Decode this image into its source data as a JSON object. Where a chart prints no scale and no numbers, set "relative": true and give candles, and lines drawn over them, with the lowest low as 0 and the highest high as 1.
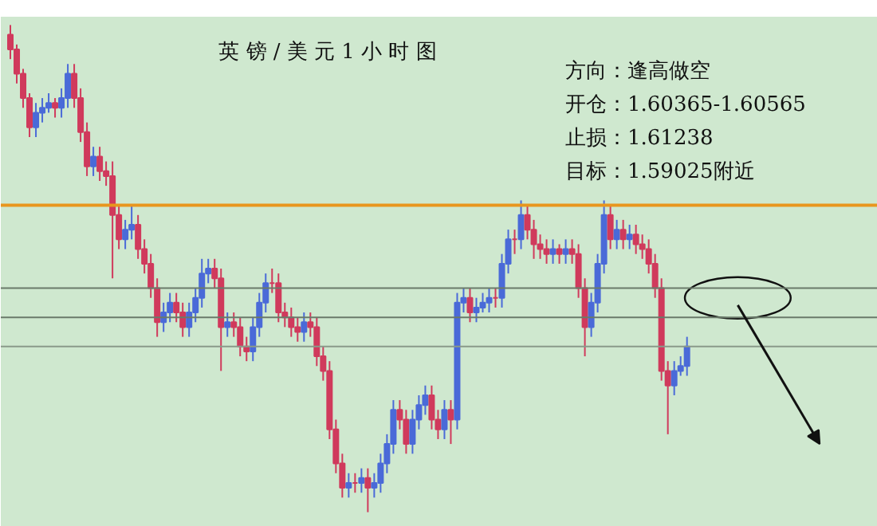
{
  "chart_data": {
    "type": "candlestick",
    "relative": true,
    "title": "英 镑 / 美 元 1 小 时 图",
    "annotations": [
      "方向：逢高做空",
      "开仓：1.60365-1.60565",
      "止损：1.61238",
      "目标：1.59025附近"
    ],
    "categories": [
      null,
      null,
      null,
      null,
      null,
      null,
      null,
      null,
      null,
      null,
      null,
      null,
      null,
      null,
      null,
      null,
      null,
      null,
      null,
      null,
      null,
      null,
      null,
      null,
      null,
      null,
      null,
      null,
      null,
      null,
      null,
      null,
      null,
      null,
      null,
      null,
      null,
      null,
      null,
      null,
      null,
      null,
      null,
      null,
      null,
      null,
      null,
      null,
      null,
      null,
      null,
      null,
      null,
      null,
      null,
      null,
      null,
      null,
      null,
      null,
      null,
      null,
      null,
      null,
      null,
      null,
      null,
      null,
      null,
      null,
      null,
      null,
      null,
      null,
      null,
      null,
      null,
      null,
      null,
      null,
      null,
      null,
      null,
      null,
      null,
      null,
      null,
      null,
      null,
      null,
      null,
      null,
      null,
      null,
      null,
      null,
      null,
      null,
      null,
      null,
      null,
      null,
      null,
      null,
      null,
      null,
      null
    ],
    "ohlc": [
      [
        0.98,
        1.0,
        0.93,
        0.95
      ],
      [
        0.95,
        0.96,
        0.88,
        0.9
      ],
      [
        0.9,
        0.91,
        0.83,
        0.85
      ],
      [
        0.85,
        0.86,
        0.77,
        0.79
      ],
      [
        0.79,
        0.84,
        0.77,
        0.82
      ],
      [
        0.82,
        0.85,
        0.8,
        0.83
      ],
      [
        0.83,
        0.86,
        0.82,
        0.84
      ],
      [
        0.84,
        0.85,
        0.81,
        0.83
      ],
      [
        0.83,
        0.87,
        0.81,
        0.85
      ],
      [
        0.85,
        0.92,
        0.83,
        0.9
      ],
      [
        0.9,
        0.92,
        0.83,
        0.85
      ],
      [
        0.85,
        0.87,
        0.76,
        0.78
      ],
      [
        0.78,
        0.8,
        0.69,
        0.71
      ],
      [
        0.71,
        0.75,
        0.69,
        0.73
      ],
      [
        0.73,
        0.75,
        0.68,
        0.7
      ],
      [
        0.7,
        0.72,
        0.67,
        0.69
      ],
      [
        0.69,
        0.72,
        0.48,
        0.61
      ],
      [
        0.61,
        0.63,
        0.54,
        0.56
      ],
      [
        0.56,
        0.6,
        0.54,
        0.58
      ],
      [
        0.58,
        0.63,
        0.56,
        0.59
      ],
      [
        0.59,
        0.61,
        0.52,
        0.54
      ],
      [
        0.54,
        0.56,
        0.49,
        0.51
      ],
      [
        0.51,
        0.53,
        0.44,
        0.46
      ],
      [
        0.46,
        0.48,
        0.36,
        0.39
      ],
      [
        0.39,
        0.43,
        0.37,
        0.41
      ],
      [
        0.41,
        0.45,
        0.39,
        0.43
      ],
      [
        0.43,
        0.45,
        0.39,
        0.41
      ],
      [
        0.41,
        0.43,
        0.36,
        0.38
      ],
      [
        0.38,
        0.43,
        0.36,
        0.41
      ],
      [
        0.41,
        0.46,
        0.39,
        0.44
      ],
      [
        0.44,
        0.52,
        0.42,
        0.49
      ],
      [
        0.49,
        0.52,
        0.47,
        0.5
      ],
      [
        0.5,
        0.52,
        0.46,
        0.48
      ],
      [
        0.48,
        0.5,
        0.29,
        0.38
      ],
      [
        0.38,
        0.41,
        0.36,
        0.39
      ],
      [
        0.39,
        0.41,
        0.36,
        0.38
      ],
      [
        0.38,
        0.4,
        0.32,
        0.34
      ],
      [
        0.34,
        0.36,
        0.31,
        0.33
      ],
      [
        0.33,
        0.4,
        0.31,
        0.38
      ],
      [
        0.38,
        0.45,
        0.36,
        0.43
      ],
      [
        0.43,
        0.49,
        0.41,
        0.47
      ],
      [
        0.47,
        0.5,
        0.45,
        0.47
      ],
      [
        0.47,
        0.49,
        0.39,
        0.41
      ],
      [
        0.41,
        0.43,
        0.38,
        0.4
      ],
      [
        0.4,
        0.42,
        0.36,
        0.38
      ],
      [
        0.38,
        0.4,
        0.35,
        0.37
      ],
      [
        0.37,
        0.41,
        0.35,
        0.39
      ],
      [
        0.39,
        0.41,
        0.36,
        0.38
      ],
      [
        0.38,
        0.4,
        0.3,
        0.32
      ],
      [
        0.32,
        0.34,
        0.27,
        0.29
      ],
      [
        0.29,
        0.31,
        0.15,
        0.17
      ],
      [
        0.17,
        0.19,
        0.08,
        0.1
      ],
      [
        0.1,
        0.12,
        0.03,
        0.05
      ],
      [
        0.05,
        0.08,
        0.03,
        0.06
      ],
      [
        0.06,
        0.08,
        0.04,
        0.06
      ],
      [
        0.06,
        0.09,
        0.04,
        0.07
      ],
      [
        0.07,
        0.09,
        0.0,
        0.05
      ],
      [
        0.05,
        0.08,
        0.03,
        0.06
      ],
      [
        0.06,
        0.12,
        0.04,
        0.1
      ],
      [
        0.1,
        0.16,
        0.08,
        0.14
      ],
      [
        0.14,
        0.23,
        0.12,
        0.21
      ],
      [
        0.21,
        0.23,
        0.17,
        0.19
      ],
      [
        0.19,
        0.21,
        0.12,
        0.14
      ],
      [
        0.14,
        0.21,
        0.12,
        0.19
      ],
      [
        0.19,
        0.24,
        0.17,
        0.22
      ],
      [
        0.22,
        0.26,
        0.2,
        0.24
      ],
      [
        0.24,
        0.26,
        0.17,
        0.19
      ],
      [
        0.19,
        0.21,
        0.15,
        0.17
      ],
      [
        0.17,
        0.23,
        0.15,
        0.21
      ],
      [
        0.21,
        0.23,
        0.14,
        0.19
      ],
      [
        0.19,
        0.45,
        0.17,
        0.43
      ],
      [
        0.43,
        0.46,
        0.41,
        0.44
      ],
      [
        0.44,
        0.46,
        0.39,
        0.41
      ],
      [
        0.41,
        0.44,
        0.39,
        0.42
      ],
      [
        0.42,
        0.45,
        0.41,
        0.43
      ],
      [
        0.43,
        0.46,
        0.41,
        0.44
      ],
      [
        0.44,
        0.46,
        0.42,
        0.44
      ],
      [
        0.44,
        0.53,
        0.42,
        0.51
      ],
      [
        0.51,
        0.58,
        0.49,
        0.56
      ],
      [
        0.56,
        0.58,
        0.53,
        0.56
      ],
      [
        0.56,
        0.64,
        0.54,
        0.61
      ],
      [
        0.61,
        0.63,
        0.56,
        0.58
      ],
      [
        0.58,
        0.6,
        0.52,
        0.55
      ],
      [
        0.55,
        0.57,
        0.52,
        0.54
      ],
      [
        0.54,
        0.56,
        0.51,
        0.53
      ],
      [
        0.53,
        0.56,
        0.51,
        0.54
      ],
      [
        0.54,
        0.55,
        0.51,
        0.53
      ],
      [
        0.53,
        0.56,
        0.51,
        0.54
      ],
      [
        0.54,
        0.56,
        0.51,
        0.53
      ],
      [
        0.53,
        0.55,
        0.44,
        0.46
      ],
      [
        0.46,
        0.48,
        0.32,
        0.38
      ],
      [
        0.38,
        0.45,
        0.36,
        0.43
      ],
      [
        0.43,
        0.53,
        0.41,
        0.51
      ],
      [
        0.51,
        0.64,
        0.49,
        0.61
      ],
      [
        0.61,
        0.63,
        0.54,
        0.56
      ],
      [
        0.56,
        0.6,
        0.54,
        0.58
      ],
      [
        0.58,
        0.6,
        0.54,
        0.56
      ],
      [
        0.56,
        0.59,
        0.54,
        0.57
      ],
      [
        0.57,
        0.59,
        0.53,
        0.55
      ],
      [
        0.55,
        0.57,
        0.52,
        0.54
      ],
      [
        0.54,
        0.56,
        0.49,
        0.51
      ],
      [
        0.51,
        0.53,
        0.44,
        0.46
      ],
      [
        0.46,
        0.48,
        0.27,
        0.29
      ],
      [
        0.29,
        0.31,
        0.16,
        0.26
      ],
      [
        0.26,
        0.31,
        0.24,
        0.29
      ],
      [
        0.29,
        0.32,
        0.28,
        0.3
      ],
      [
        0.3,
        0.36,
        0.28,
        0.34
      ]
    ],
    "colors": [
      "#d03a5c",
      "#d03a5c",
      "#d03a5c",
      "#d03a5c",
      "#4a6ad8",
      "#4a6ad8",
      "#4a6ad8",
      "#d03a5c",
      "#4a6ad8",
      "#4a6ad8",
      "#d03a5c",
      "#d03a5c",
      "#d03a5c",
      "#4a6ad8",
      "#d03a5c",
      "#d03a5c",
      "#d03a5c",
      "#d03a5c",
      "#4a6ad8",
      "#4a6ad8",
      "#d03a5c",
      "#d03a5c",
      "#d03a5c",
      "#d03a5c",
      "#4a6ad8",
      "#4a6ad8",
      "#d03a5c",
      "#d03a5c",
      "#4a6ad8",
      "#4a6ad8",
      "#4a6ad8",
      "#4a6ad8",
      "#d03a5c",
      "#d03a5c",
      "#4a6ad8",
      "#d03a5c",
      "#d03a5c",
      "#d03a5c",
      "#4a6ad8",
      "#4a6ad8",
      "#4a6ad8",
      "#d03a5c",
      "#d03a5c",
      "#d03a5c",
      "#d03a5c",
      "#d03a5c",
      "#4a6ad8",
      "#d03a5c",
      "#d03a5c",
      "#d03a5c",
      "#d03a5c",
      "#d03a5c",
      "#d03a5c",
      "#4a6ad8",
      "#d03a5c",
      "#4a6ad8",
      "#d03a5c",
      "#4a6ad8",
      "#4a6ad8",
      "#4a6ad8",
      "#4a6ad8",
      "#d03a5c",
      "#d03a5c",
      "#4a6ad8",
      "#4a6ad8",
      "#4a6ad8",
      "#d03a5c",
      "#d03a5c",
      "#4a6ad8",
      "#d03a5c",
      "#4a6ad8",
      "#4a6ad8",
      "#d03a5c",
      "#4a6ad8",
      "#4a6ad8",
      "#4a6ad8",
      "#d03a5c",
      "#4a6ad8",
      "#4a6ad8",
      "#d03a5c",
      "#4a6ad8",
      "#d03a5c",
      "#d03a5c",
      "#d03a5c",
      "#d03a5c",
      "#4a6ad8",
      "#d03a5c",
      "#4a6ad8",
      "#d03a5c",
      "#d03a5c",
      "#d03a5c",
      "#4a6ad8",
      "#4a6ad8",
      "#4a6ad8",
      "#d03a5c",
      "#4a6ad8",
      "#d03a5c",
      "#4a6ad8",
      "#d03a5c",
      "#d03a5c",
      "#d03a5c",
      "#d03a5c",
      "#d03a5c",
      "#d03a5c",
      "#4a6ad8",
      "#4a6ad8",
      "#4a6ad8"
    ],
    "ref_lines": [
      {
        "axis": "y",
        "value": 0.63,
        "color": "#e8961e"
      },
      {
        "axis": "y",
        "value": 0.46,
        "color": "#6a7a6a"
      },
      {
        "axis": "y",
        "value": 0.4,
        "color": "#6a7a6a"
      },
      {
        "axis": "y",
        "value": 0.34,
        "color": "#8a9a8a"
      }
    ],
    "grid": false
  }
}
